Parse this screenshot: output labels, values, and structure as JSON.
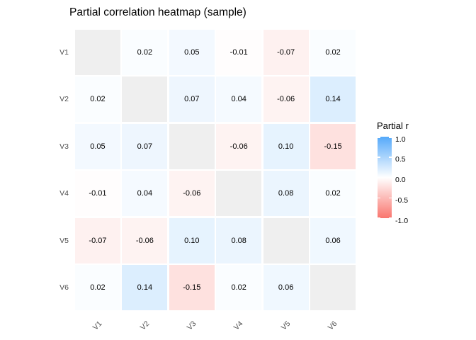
{
  "title": "Partial correlation heatmap (sample)",
  "legend": {
    "title": "Partial r",
    "ticks": [
      "1.0",
      "0.5",
      "0.0",
      "-0.5",
      "-1.0"
    ]
  },
  "chart_data": {
    "type": "heatmap",
    "title": "Partial correlation heatmap (sample)",
    "variables": [
      "V1",
      "V2",
      "V3",
      "V4",
      "V5",
      "V6"
    ],
    "matrix": [
      [
        null,
        0.02,
        0.05,
        -0.01,
        -0.07,
        0.02
      ],
      [
        0.02,
        null,
        0.07,
        0.04,
        -0.06,
        0.14
      ],
      [
        0.05,
        0.07,
        null,
        -0.06,
        0.1,
        -0.15
      ],
      [
        -0.01,
        0.04,
        -0.06,
        null,
        0.08,
        0.02
      ],
      [
        -0.07,
        -0.06,
        0.1,
        0.08,
        null,
        0.06
      ],
      [
        0.02,
        0.14,
        -0.15,
        0.02,
        0.06,
        null
      ]
    ],
    "diagonal": "NA",
    "legend_title": "Partial r",
    "colorbar": {
      "min": -1.0,
      "max": 1.0,
      "tick_values": [
        1.0,
        0.5,
        0.0,
        -0.5,
        -1.0
      ],
      "high_color": "#55A9FA",
      "mid_color": "#FFFFFF",
      "low_color": "#F9756E",
      "na_color": "#EFEFEF",
      "position": "right"
    },
    "axis_text_color": "#4d4d4d",
    "cell_text_color": "#000000"
  }
}
